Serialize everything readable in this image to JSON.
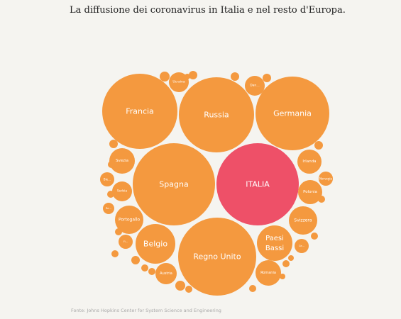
{
  "chart_data": {
    "type": "bubble",
    "title": "La diffusione dei coronavirus in Italia e nel resto d'Europa.",
    "source": "Fonte: Johns Hopkins Center for System Science and Engineering",
    "highlight": "ITALIA",
    "colors": {
      "default": "#f4993f",
      "highlight": "#ee5068"
    },
    "labeled_bubbles": [
      "Francia",
      "Russia",
      "Germania",
      "Spagna",
      "ITALIA",
      "Regno Unito",
      "Belgio",
      "Paesi Bassi",
      "Svezia",
      "Irlanda",
      "Serbia",
      "Polonia",
      "Svizzera",
      "Portogallo",
      "Austria",
      "Romania",
      "Ucraina",
      "Dan…",
      "Bie…",
      "Norvegia",
      "Re…",
      "Fi…",
      "Ce…"
    ],
    "unlabeled_bubble_count": 22
  }
}
